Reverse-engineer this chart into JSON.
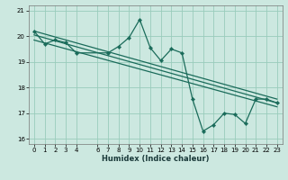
{
  "xlabel": "Humidex (Indice chaleur)",
  "xlim": [
    -0.5,
    23.5
  ],
  "ylim": [
    15.8,
    21.2
  ],
  "yticks": [
    16,
    17,
    18,
    19,
    20,
    21
  ],
  "xticks": [
    0,
    1,
    2,
    3,
    4,
    6,
    7,
    8,
    9,
    10,
    11,
    12,
    13,
    14,
    15,
    16,
    17,
    18,
    19,
    20,
    21,
    22,
    23
  ],
  "background_color": "#cce8e0",
  "grid_color": "#99ccbb",
  "line_color": "#1a6b5a",
  "line1_x": [
    0,
    1,
    2,
    3,
    4,
    7,
    8,
    9,
    10,
    11,
    12,
    13,
    14,
    15,
    16,
    17,
    18,
    19,
    20,
    21,
    22,
    23
  ],
  "line1_y": [
    20.2,
    19.7,
    19.85,
    19.75,
    19.35,
    19.35,
    19.6,
    19.95,
    20.65,
    19.55,
    19.05,
    19.5,
    19.35,
    17.55,
    16.3,
    16.55,
    17.0,
    16.95,
    16.6,
    17.55,
    17.55,
    17.4
  ],
  "line2_x": [
    0,
    23
  ],
  "line2_y": [
    20.2,
    17.55
  ],
  "line3_x": [
    0,
    23
  ],
  "line3_y": [
    20.05,
    17.4
  ],
  "line4_x": [
    0,
    23
  ],
  "line4_y": [
    19.85,
    17.25
  ]
}
